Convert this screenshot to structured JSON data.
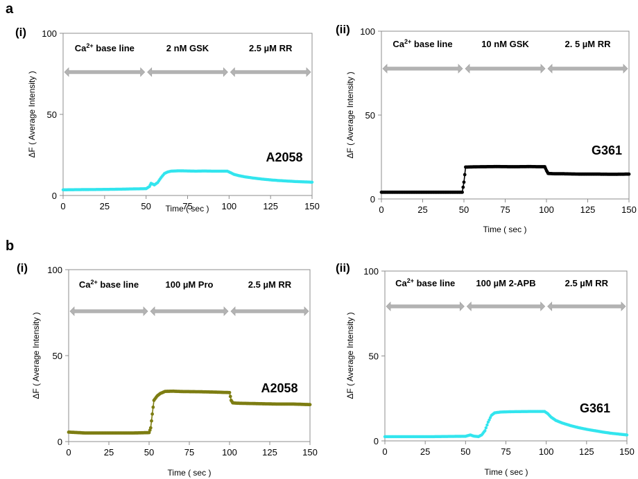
{
  "figure": {
    "section_labels": [
      "a",
      "b"
    ]
  },
  "chart_data": [
    {
      "id": "a-i",
      "type": "line",
      "panel_label": "(i)",
      "xlabel": "Time ( sec )",
      "ylabel": "ΔF ( Average Intensity )",
      "xlim": [
        0,
        150
      ],
      "ylim": [
        0,
        100
      ],
      "xticks": [
        0,
        25,
        50,
        75,
        100,
        125,
        150
      ],
      "yticks": [
        0,
        50,
        100
      ],
      "annotation": "A2058",
      "segments": [
        {
          "label": "Ca²⁺ base line",
          "label_base": "Ca",
          "label_sup": "2+",
          "label_rest": " base line",
          "x_start": 0,
          "x_end": 50
        },
        {
          "label": "2 nM GSK",
          "x_start": 50,
          "x_end": 100
        },
        {
          "label": "2.5 µM RR",
          "x_start": 100,
          "x_end": 150
        }
      ],
      "series": [
        {
          "color": "#33e5ee",
          "marker_size": 2.2,
          "x": [
            0,
            10,
            20,
            30,
            40,
            50,
            52,
            53,
            55,
            57,
            59,
            61,
            63,
            65,
            70,
            75,
            80,
            85,
            90,
            95,
            99,
            101,
            103,
            106,
            110,
            115,
            120,
            125,
            130,
            135,
            140,
            145,
            150
          ],
          "y": [
            3.5,
            3.6,
            3.7,
            3.8,
            4.0,
            4.2,
            5.5,
            7.5,
            6.5,
            8.0,
            11.0,
            13.5,
            14.5,
            15.0,
            15.2,
            15.1,
            15.0,
            15.1,
            15.0,
            15.0,
            15.0,
            14.0,
            13.0,
            12.2,
            11.4,
            10.7,
            10.1,
            9.6,
            9.2,
            8.9,
            8.6,
            8.4,
            8.2
          ]
        }
      ]
    },
    {
      "id": "a-ii",
      "type": "line",
      "panel_label": "(ii)",
      "xlabel": "Time ( sec )",
      "ylabel": "ΔF ( Average Intensity )",
      "xlim": [
        0,
        150
      ],
      "ylim": [
        0,
        100
      ],
      "xticks": [
        0,
        25,
        50,
        75,
        100,
        125,
        150
      ],
      "yticks": [
        0,
        50,
        100
      ],
      "annotation": "G361",
      "segments": [
        {
          "label": "Ca²⁺ base line",
          "label_base": "Ca",
          "label_sup": "2+",
          "label_rest": " base line",
          "x_start": 0,
          "x_end": 50
        },
        {
          "label": "10 nM GSK",
          "x_start": 50,
          "x_end": 100
        },
        {
          "label": "2. 5 µM RR",
          "x_start": 100,
          "x_end": 150
        }
      ],
      "series": [
        {
          "color": "#000000",
          "marker_size": 2.4,
          "x": [
            0,
            10,
            20,
            30,
            40,
            49,
            50,
            51,
            55,
            60,
            70,
            80,
            90,
            95,
            99,
            100,
            101,
            105,
            110,
            120,
            130,
            140,
            150
          ],
          "y": [
            4.0,
            4.0,
            4.0,
            4.0,
            4.0,
            4.0,
            10.0,
            19.0,
            19.1,
            19.2,
            19.3,
            19.2,
            19.3,
            19.2,
            19.2,
            17.0,
            15.2,
            15.0,
            15.0,
            14.8,
            14.8,
            14.7,
            14.8
          ]
        }
      ]
    },
    {
      "id": "b-i",
      "type": "line",
      "panel_label": "(i)",
      "xlabel": "Time ( sec )",
      "ylabel": "ΔF ( Average Intensity )",
      "xlim": [
        0,
        150
      ],
      "ylim": [
        0,
        100
      ],
      "xticks": [
        0,
        25,
        50,
        75,
        100,
        125,
        150
      ],
      "yticks": [
        0,
        50,
        100
      ],
      "annotation": "A2058",
      "segments": [
        {
          "label": "Ca²⁺ base line",
          "label_base": "Ca",
          "label_sup": "2+",
          "label_rest": " base line",
          "x_start": 0,
          "x_end": 50
        },
        {
          "label": "100 µM Pro",
          "x_start": 50,
          "x_end": 100
        },
        {
          "label": "2.5 µM RR",
          "x_start": 100,
          "x_end": 150
        }
      ],
      "series": [
        {
          "color": "#7d7d12",
          "marker_size": 2.4,
          "x": [
            0,
            10,
            20,
            30,
            40,
            50,
            51,
            52,
            53,
            55,
            57,
            60,
            65,
            70,
            80,
            90,
            100,
            101,
            102,
            105,
            110,
            120,
            130,
            140,
            150
          ],
          "y": [
            5.5,
            5.0,
            5.0,
            5.0,
            5.0,
            5.2,
            8.0,
            16.0,
            24.0,
            26.5,
            28.0,
            29.2,
            29.3,
            29.1,
            29.0,
            28.8,
            28.5,
            24.0,
            22.5,
            22.3,
            22.2,
            22.0,
            21.8,
            21.8,
            21.5
          ]
        }
      ]
    },
    {
      "id": "b-ii",
      "type": "line",
      "panel_label": "(ii)",
      "xlabel": "Time ( sec )",
      "ylabel": "ΔF ( Average Intensity )",
      "xlim": [
        0,
        150
      ],
      "ylim": [
        0,
        100
      ],
      "xticks": [
        0,
        25,
        50,
        75,
        100,
        125,
        150
      ],
      "yticks": [
        0,
        50,
        100
      ],
      "annotation": "G361",
      "segments": [
        {
          "label": "Ca²⁺ base line",
          "label_base": "Ca",
          "label_sup": "2+",
          "label_rest": " base line",
          "x_start": 0,
          "x_end": 50
        },
        {
          "label": "100 µM 2-APB",
          "x_start": 50,
          "x_end": 100
        },
        {
          "label": "2.5 µM RR",
          "x_start": 100,
          "x_end": 150
        }
      ],
      "series": [
        {
          "color": "#33e5ee",
          "marker_size": 2.2,
          "x": [
            0,
            10,
            20,
            30,
            40,
            50,
            53,
            55,
            58,
            60,
            62,
            64,
            66,
            68,
            72,
            80,
            90,
            99,
            101,
            103,
            106,
            110,
            115,
            120,
            125,
            130,
            135,
            140,
            145,
            150
          ],
          "y": [
            2.5,
            2.5,
            2.5,
            2.5,
            2.6,
            2.7,
            3.5,
            2.8,
            2.5,
            3.5,
            6.0,
            11.0,
            15.0,
            16.5,
            17.0,
            17.2,
            17.3,
            17.3,
            16.0,
            14.0,
            12.0,
            10.5,
            9.0,
            7.8,
            6.8,
            6.0,
            5.2,
            4.5,
            4.0,
            3.5
          ]
        }
      ]
    }
  ]
}
